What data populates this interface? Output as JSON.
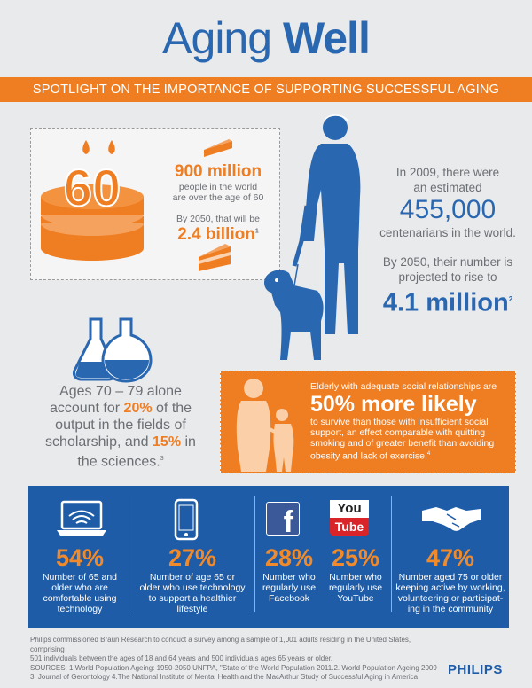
{
  "header": {
    "title_part1": "Aging",
    "title_part2": "Well",
    "banner": "SPOTLIGHT ON THE IMPORTANCE OF SUPPORTING SUCCESSFUL AGING"
  },
  "cake": {
    "candle_number": "60",
    "big1": "900 million",
    "text1a": "people in the world",
    "text1b": "are over the age of 60",
    "text2": "By 2050, that will be",
    "big2": "2.4 billion",
    "sup2": "1"
  },
  "centenarians": {
    "line1": "In 2009, there were",
    "line2": "an estimated",
    "big1": "455,000",
    "line3": "centenarians in the world.",
    "line4": "By 2050, their number is",
    "line5": "projected to rise to",
    "big2": "4.1 million",
    "sup": "2"
  },
  "scholarship": {
    "l1": "Ages 70 – 79 alone",
    "l2a": "account for ",
    "l2b": "20%",
    "l2c": " of the",
    "l3": "output in the fields of",
    "l4a": "scholarship, and ",
    "l4b": "15%",
    "l4c": " in",
    "l5": "the sciences.",
    "sup": "3"
  },
  "social": {
    "intro": "Elderly with adequate social relationships are",
    "big": "50% more likely",
    "l1": "to survive than those with insufficient social",
    "l2": "support, an effect comparable with quitting",
    "l3": "smoking and of greater benefit than avoiding",
    "l4": "obesity and lack of exercise.",
    "sup": "4"
  },
  "stats": [
    {
      "pct": "54%",
      "desc": [
        "Number of 65 and",
        "older who are",
        "comfortable using",
        "technology"
      ]
    },
    {
      "pct": "27%",
      "desc": [
        "Number of age 65 or",
        "older who use technology",
        "to support a healthier",
        "lifestyle"
      ]
    },
    {
      "pct": "28%",
      "desc": [
        "Number who",
        "regularly use",
        "Facebook"
      ]
    },
    {
      "pct": "25%",
      "desc": [
        "Number who",
        "regularly use",
        "YouTube"
      ]
    },
    {
      "pct": "47%",
      "desc": [
        "Number aged 75 or older",
        "keeping active by working,",
        "volunteering or participat-",
        "ing in the community"
      ]
    }
  ],
  "youtube": {
    "you": "You",
    "tube": "Tube"
  },
  "facebook_letter": "f",
  "footer": {
    "l1": "Philips commissioned Braun Research to conduct a survey among a sample of 1,001 adults residing in the United States, comprising",
    "l2": "501 individuals between the ages of 18 and 64 years and 500 individuals ages 65 years or older.",
    "l3": "SOURCES: 1.World Population Ageing: 1950-2050 UNFPA, \"State of the World Population 2011.2. World Population Ageing 2009",
    "l4": "3. Journal of Gerontology 4.The National Institute of Mental Health and the MacArthur Study of Successful Aging in America",
    "brand": "PHILIPS"
  },
  "colors": {
    "orange": "#ef7d22",
    "blue": "#2a67b1",
    "dark_blue": "#1e5ca8",
    "gray": "#6b6e72"
  }
}
